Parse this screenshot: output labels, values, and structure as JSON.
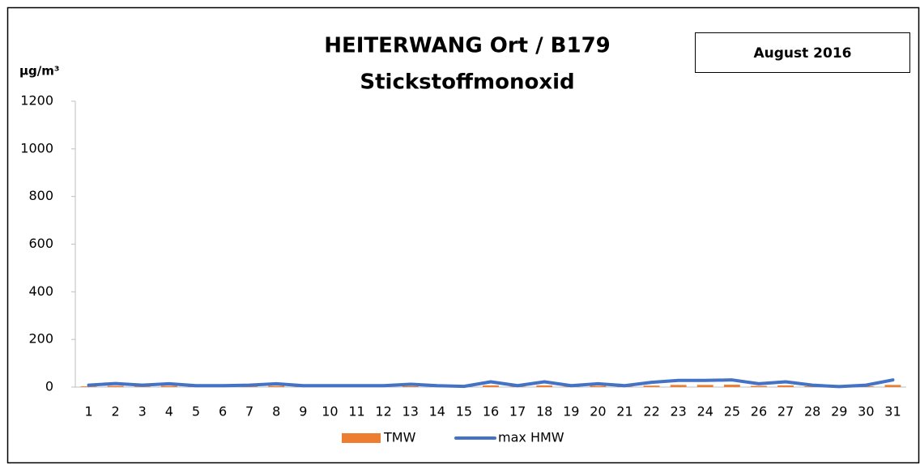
{
  "chart_data": {
    "type": "bar_line",
    "title": "HEITERWANG Ort / B179",
    "subtitle": "Stickstoffmonoxid",
    "period": "August 2016",
    "y_axis_label": "µg/m³",
    "categories": [
      "1",
      "2",
      "3",
      "4",
      "5",
      "6",
      "7",
      "8",
      "9",
      "10",
      "11",
      "12",
      "13",
      "14",
      "15",
      "16",
      "17",
      "18",
      "19",
      "20",
      "21",
      "22",
      "23",
      "24",
      "25",
      "26",
      "27",
      "28",
      "29",
      "30",
      "31"
    ],
    "series": [
      {
        "name": "TMW",
        "type": "bar",
        "color": "#ed7d31",
        "values": [
          3,
          5,
          3,
          5,
          2,
          2,
          3,
          5,
          2,
          2,
          2,
          2,
          4,
          2,
          1,
          7,
          2,
          7,
          2,
          5,
          2,
          6,
          9,
          9,
          10,
          5,
          7,
          3,
          1,
          3,
          9
        ]
      },
      {
        "name": "max HMW",
        "type": "line",
        "color": "#4472c4",
        "values": [
          8,
          15,
          8,
          14,
          6,
          6,
          8,
          14,
          6,
          6,
          6,
          6,
          12,
          6,
          3,
          22,
          6,
          22,
          6,
          14,
          6,
          20,
          28,
          28,
          30,
          14,
          22,
          8,
          2,
          8,
          30
        ]
      }
    ],
    "ylim": [
      0,
      1200
    ],
    "yticks": [
      0,
      200,
      400,
      600,
      800,
      1000,
      1200
    ],
    "legend": "bottom",
    "grid": false
  }
}
